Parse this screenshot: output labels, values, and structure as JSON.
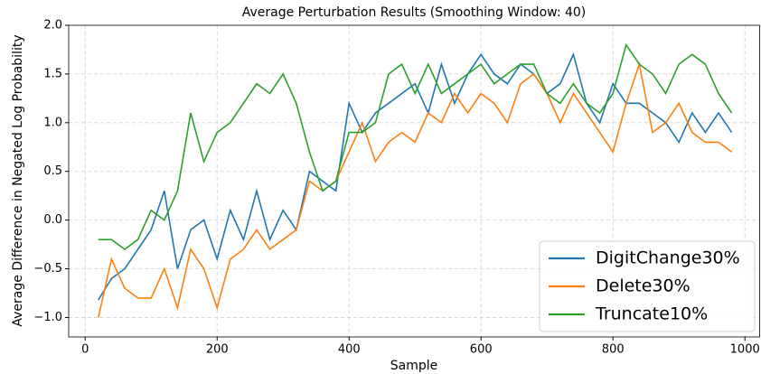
{
  "chart_data": {
    "type": "line",
    "title": "Average Perturbation Results (Smoothing Window: 40)",
    "xlabel": "Sample",
    "ylabel": "Average Difference in Negated Log Probability",
    "x": [
      20,
      40,
      60,
      80,
      100,
      120,
      140,
      160,
      180,
      200,
      220,
      240,
      260,
      280,
      300,
      320,
      340,
      360,
      380,
      400,
      420,
      440,
      460,
      480,
      500,
      520,
      540,
      560,
      580,
      600,
      620,
      640,
      660,
      680,
      700,
      720,
      740,
      760,
      780,
      800,
      820,
      840,
      860,
      880,
      900,
      920,
      940,
      960,
      980
    ],
    "series": [
      {
        "name": "DigitChange30%",
        "color": "#1f77b4",
        "values": [
          -0.82,
          -0.6,
          -0.5,
          -0.3,
          -0.1,
          0.3,
          -0.5,
          -0.1,
          0.0,
          -0.4,
          0.1,
          -0.2,
          0.3,
          -0.2,
          0.1,
          -0.1,
          0.5,
          0.4,
          0.3,
          1.2,
          0.9,
          1.1,
          1.2,
          1.3,
          1.4,
          1.1,
          1.6,
          1.2,
          1.5,
          1.7,
          1.5,
          1.4,
          1.6,
          1.5,
          1.3,
          1.4,
          1.7,
          1.2,
          1.0,
          1.4,
          1.2,
          1.2,
          1.1,
          1.0,
          0.8,
          1.1,
          0.9,
          1.1,
          0.9
        ]
      },
      {
        "name": "Delete30%",
        "color": "#ff7f0e",
        "values": [
          -1.0,
          -0.4,
          -0.7,
          -0.8,
          -0.8,
          -0.5,
          -0.9,
          -0.3,
          -0.5,
          -0.9,
          -0.4,
          -0.3,
          -0.1,
          -0.3,
          -0.2,
          -0.1,
          0.4,
          0.3,
          0.4,
          0.7,
          1.0,
          0.6,
          0.8,
          0.9,
          0.8,
          1.1,
          1.0,
          1.3,
          1.1,
          1.3,
          1.2,
          1.0,
          1.4,
          1.5,
          1.3,
          1.0,
          1.3,
          1.1,
          0.9,
          0.7,
          1.2,
          1.6,
          0.9,
          1.0,
          1.2,
          0.9,
          0.8,
          0.8,
          0.7
        ]
      },
      {
        "name": "Truncate10%",
        "color": "#2ca02c",
        "values": [
          -0.2,
          -0.2,
          -0.3,
          -0.2,
          0.1,
          0.0,
          0.3,
          1.1,
          0.6,
          0.9,
          1.0,
          1.2,
          1.4,
          1.3,
          1.5,
          1.2,
          0.7,
          0.3,
          0.4,
          0.9,
          0.9,
          1.0,
          1.5,
          1.6,
          1.3,
          1.6,
          1.3,
          1.4,
          1.5,
          1.6,
          1.4,
          1.5,
          1.6,
          1.6,
          1.3,
          1.2,
          1.4,
          1.2,
          1.1,
          1.3,
          1.8,
          1.6,
          1.5,
          1.3,
          1.6,
          1.7,
          1.6,
          1.3,
          1.1
        ]
      }
    ],
    "xlim": [
      -25,
      1023
    ],
    "ylim": [
      -1.2,
      2.0
    ],
    "xticks": [
      0,
      200,
      400,
      600,
      800,
      1000
    ],
    "yticks": [
      {
        "value": -1.0,
        "label": "−1.0"
      },
      {
        "value": -0.5,
        "label": "−0.5"
      },
      {
        "value": 0.0,
        "label": "0.0"
      },
      0.5,
      {
        "value": 1.0,
        "label": "1.0"
      },
      1.5,
      {
        "value": 2.0,
        "label": "2.0"
      }
    ],
    "grid": true,
    "legend": "lower right"
  }
}
